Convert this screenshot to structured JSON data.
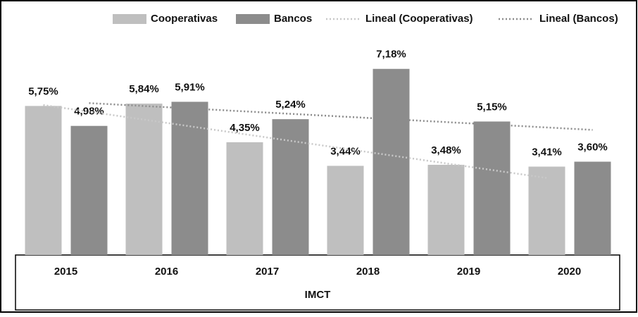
{
  "chart_data": {
    "type": "bar",
    "x_label": "IMCT",
    "categories": [
      "2015",
      "2016",
      "2017",
      "2018",
      "2019",
      "2020"
    ],
    "series": [
      {
        "name": "Cooperativas",
        "color": "#bfbfbf",
        "values": [
          5.75,
          5.84,
          4.35,
          3.44,
          3.48,
          3.41
        ],
        "value_labels": [
          "5,75%",
          "5,84%",
          "4,35%",
          "3,44%",
          "3,48%",
          "3,41%"
        ],
        "trendline": {
          "name": "Lineal (Cooperativas)",
          "color": "#c8c8c8"
        }
      },
      {
        "name": "Bancos",
        "color": "#8c8c8c",
        "values": [
          4.98,
          5.91,
          5.24,
          7.18,
          5.15,
          3.6
        ],
        "value_labels": [
          "4,98%",
          "5,91%",
          "5,24%",
          "7,18%",
          "5,15%",
          "3,60%"
        ],
        "trendline": {
          "name": "Lineal (Bancos)",
          "color": "#8c8c8c"
        }
      }
    ],
    "ylim": [
      0,
      8
    ]
  }
}
